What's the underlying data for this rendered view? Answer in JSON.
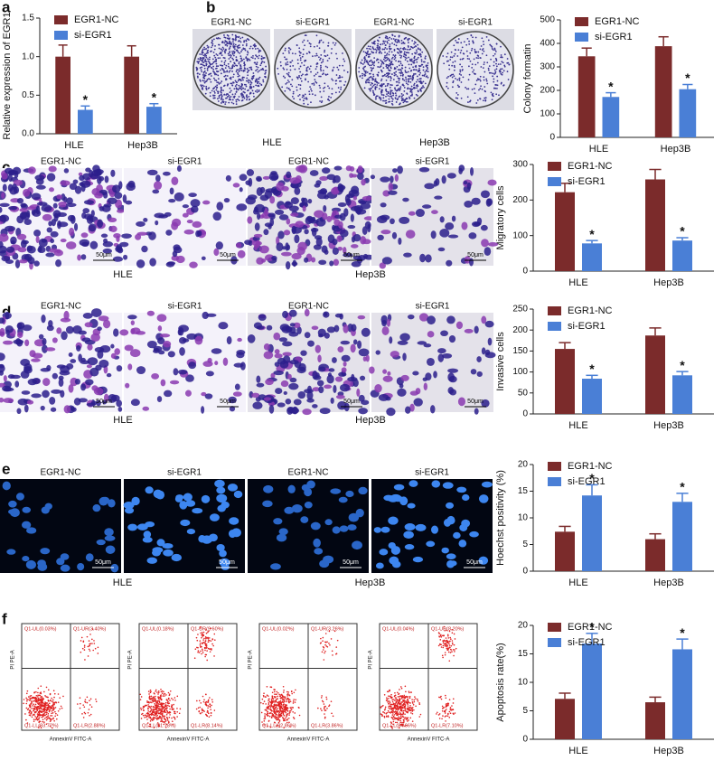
{
  "chart_data": [
    {
      "type": "bar",
      "ylabel": "Relative expression of EGR1",
      "categories": [
        "HLE",
        "Hep3B"
      ],
      "series": [
        {
          "name": "EGR1-NC",
          "color": "#7b2b2b",
          "values": [
            1.0,
            1.0
          ],
          "errors": [
            0.15,
            0.14
          ]
        },
        {
          "name": "si-EGR1",
          "color": "#4a7fd6",
          "values": [
            0.31,
            0.35
          ],
          "errors": [
            0.05,
            0.04
          ],
          "annotations": [
            "*",
            "*"
          ]
        }
      ],
      "ylim": [
        0,
        1.5
      ],
      "yticks": [
        {
          "value": 0,
          "label": "0.0"
        },
        {
          "value": 0.5,
          "label": "0.5"
        },
        {
          "value": 1,
          "label": "1.0"
        },
        {
          "value": 1.5,
          "label": "1.5"
        }
      ],
      "legend": "upper left"
    },
    {
      "type": "bar",
      "ylabel": "Colony formatin",
      "categories": [
        "HLE",
        "Hep3B"
      ],
      "series": [
        {
          "name": "EGR1-NC",
          "color": "#7b2b2b",
          "values": [
            345,
            388
          ],
          "errors": [
            35,
            40
          ]
        },
        {
          "name": "si-EGR1",
          "color": "#4a7fd6",
          "values": [
            172,
            205
          ],
          "errors": [
            18,
            20
          ],
          "annotations": [
            "*",
            "*"
          ]
        }
      ],
      "ylim": [
        0,
        500
      ],
      "yticks": [
        0,
        100,
        200,
        300,
        400,
        500
      ],
      "legend": "upper left"
    },
    {
      "type": "bar",
      "ylabel": "Migratory cells",
      "categories": [
        "HLE",
        "Hep3B"
      ],
      "series": [
        {
          "name": "EGR1-NC",
          "color": "#7b2b2b",
          "values": [
            222,
            258
          ],
          "errors": [
            25,
            28
          ]
        },
        {
          "name": "si-EGR1",
          "color": "#4a7fd6",
          "values": [
            78,
            86
          ],
          "errors": [
            8,
            8
          ],
          "annotations": [
            "*",
            "*"
          ]
        }
      ],
      "ylim": [
        0,
        300
      ],
      "yticks": [
        0,
        100,
        200,
        300
      ],
      "legend": "upper left"
    },
    {
      "type": "bar",
      "ylabel": "Invasive cells",
      "categories": [
        "HLE",
        "Hep3B"
      ],
      "series": [
        {
          "name": "EGR1-NC",
          "color": "#7b2b2b",
          "values": [
            155,
            187
          ],
          "errors": [
            15,
            18
          ]
        },
        {
          "name": "si-EGR1",
          "color": "#4a7fd6",
          "values": [
            84,
            92
          ],
          "errors": [
            8,
            9
          ],
          "annotations": [
            "*",
            "*"
          ]
        }
      ],
      "ylim": [
        0,
        250
      ],
      "yticks": [
        0,
        50,
        100,
        150,
        200,
        250
      ],
      "legend": "upper left"
    },
    {
      "type": "bar",
      "ylabel": "Hoechst positivity (%)",
      "categories": [
        "HLE",
        "Hep3B"
      ],
      "series": [
        {
          "name": "EGR1-NC",
          "color": "#7b2b2b",
          "values": [
            7.4,
            6.0
          ],
          "errors": [
            1.0,
            1.0
          ]
        },
        {
          "name": "si-EGR1",
          "color": "#4a7fd6",
          "values": [
            14.2,
            13.0
          ],
          "errors": [
            2.0,
            1.6
          ],
          "annotations": [
            "*",
            "*"
          ]
        }
      ],
      "ylim": [
        0,
        20
      ],
      "yticks": [
        0,
        5,
        10,
        15,
        20
      ],
      "legend": "upper left"
    },
    {
      "type": "bar",
      "ylabel": "Apoptosis rate(%)",
      "categories": [
        "HLE",
        "Hep3B"
      ],
      "series": [
        {
          "name": "EGR1-NC",
          "color": "#7b2b2b",
          "values": [
            7.1,
            6.5
          ],
          "errors": [
            1.0,
            0.9
          ]
        },
        {
          "name": "si-EGR1",
          "color": "#4a7fd6",
          "values": [
            16.8,
            15.8
          ],
          "errors": [
            1.8,
            1.8
          ],
          "annotations": [
            "*",
            "*"
          ]
        }
      ],
      "ylim": [
        0,
        20
      ],
      "yticks": [
        0,
        5,
        10,
        15,
        20
      ],
      "legend": "upper left"
    }
  ],
  "figure": {
    "panel_labels": [
      "a",
      "b",
      "c",
      "d",
      "e",
      "f"
    ],
    "images": {
      "b": {
        "column_labels": [
          "EGR1-NC",
          "si-EGR1",
          "EGR1-NC",
          "si-EGR1"
        ],
        "group_labels": [
          "HLE",
          "Hep3B"
        ]
      },
      "c": {
        "column_labels": [
          "EGR1-NC",
          "si-EGR1",
          "EGR1-NC",
          "si-EGR1"
        ],
        "group_labels": [
          "HLE",
          "Hep3B"
        ],
        "scale_bar": "50μm"
      },
      "d": {
        "column_labels": [
          "EGR1-NC",
          "si-EGR1",
          "EGR1-NC",
          "si-EGR1"
        ],
        "group_labels": [
          "HLE",
          "Hep3B"
        ],
        "scale_bar": "50μm"
      },
      "e": {
        "column_labels": [
          "EGR1-NC",
          "si-EGR1",
          "EGR1-NC",
          "si-EGR1"
        ],
        "group_labels": [
          "HLE",
          "Hep3B"
        ],
        "scale_bar": "50μm"
      }
    },
    "flow": {
      "x_axis": "AnnexinV FITC-A",
      "y_axis": "PI PE-A",
      "quadrants": [
        [
          "Q1-UL(0.03%)",
          "Q1-UR(3.40%)",
          "Q1-LL(93.72%)",
          "Q1-LR(2.88%)"
        ],
        [
          "Q1-UL(0.18%)",
          "Q1-UR(9.60%)",
          "Q1-LL(81.78%)",
          "Q1-LR(8.14%)"
        ],
        [
          "Q1-UL(0.02%)",
          "Q1-UR(3.26%)",
          "Q1-LL(92.86%)",
          "Q1-LR(3.86%)"
        ],
        [
          "Q1-UL(0.04%)",
          "Q1-UR(8.20%)",
          "Q1-LL(84.66%)",
          "Q1-LR(7.10%)"
        ]
      ]
    }
  }
}
